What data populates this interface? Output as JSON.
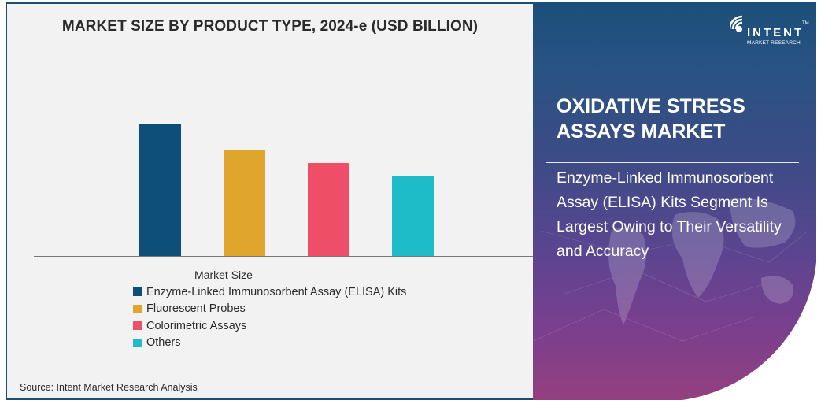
{
  "chart_data": {
    "type": "bar",
    "title": "MARKET SIZE BY PRODUCT TYPE, 2024-e (USD BILLION)",
    "xlabel": "Market Size",
    "ylabel": "",
    "categories": [
      "Enzyme-Linked Immunosorbent Assay (ELISA) Kits",
      "Fluorescent Probes",
      "Colorimetric Assays",
      "Others"
    ],
    "series": [
      {
        "name": "Enzyme-Linked Immunosorbent Assay (ELISA) Kits",
        "color": "#0e4f7a",
        "values": [
          168
        ]
      },
      {
        "name": "Fluorescent Probes",
        "color": "#e0a52d",
        "values": [
          134
        ]
      },
      {
        "name": "Colorimetric Assays",
        "color": "#ee4e67",
        "values": [
          118
        ]
      },
      {
        "name": "Others",
        "color": "#1dbcc8",
        "values": [
          101
        ]
      }
    ],
    "values_note": "relative bar heights (no axis scale shown)",
    "grid": false,
    "legend_position": "bottom"
  },
  "chart": {
    "title": "MARKET SIZE BY PRODUCT TYPE, 2024-e (USD BILLION)",
    "legend_title": "Market Size",
    "legend": [
      {
        "label": "Enzyme-Linked Immunosorbent Assay (ELISA) Kits",
        "color": "#0e4f7a"
      },
      {
        "label": "Fluorescent Probes",
        "color": "#e0a52d"
      },
      {
        "label": "Colorimetric Assays",
        "color": "#ee4e67"
      },
      {
        "label": "Others",
        "color": "#1dbcc8"
      }
    ],
    "source": "Source: Intent Market Research Analysis"
  },
  "sidebar": {
    "logo_text": "INTENT",
    "logo_sub": "MARKET RESEARCH",
    "logo_tm": "TM",
    "market_title_line1": "OXIDATIVE STRESS",
    "market_title_line2": "ASSAYS MARKET",
    "insight": "Enzyme-Linked Immunosorbent Assay (ELISA) Kits Segment Is Largest Owing to Their Versatility and Accuracy"
  }
}
